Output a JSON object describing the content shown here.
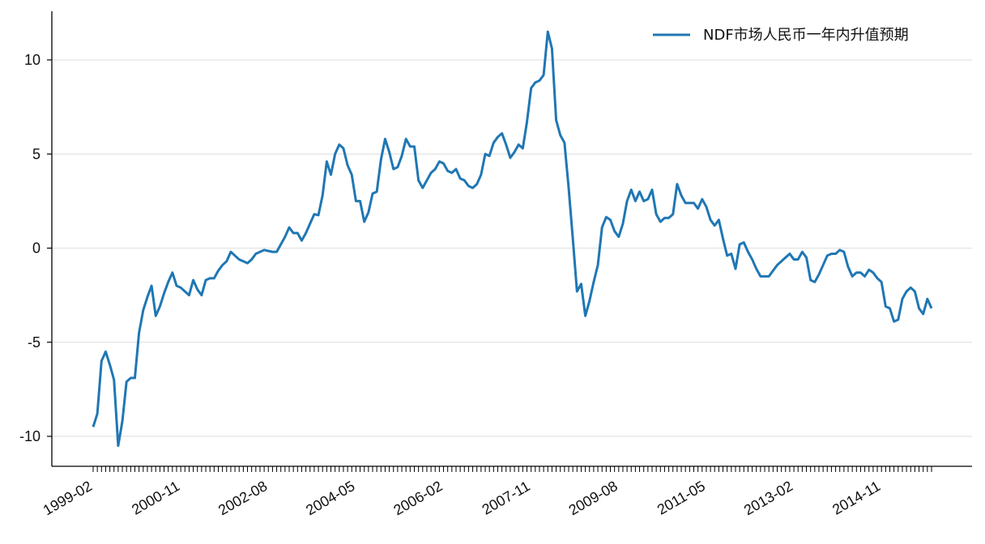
{
  "chart_data": {
    "type": "line",
    "title": "",
    "xlabel": "",
    "ylabel": "",
    "ylim": [
      -11.5,
      12.6
    ],
    "yticks": [
      10,
      5,
      0,
      -5,
      -10
    ],
    "ytick_labels": [
      "10",
      "5",
      "0",
      "-5",
      "-10"
    ],
    "grid": "horizontal",
    "legend_position": "top-right",
    "x_tick_labels": [
      "1999-02",
      "2000-11",
      "2002-08",
      "2004-05",
      "2006-02",
      "2007-11",
      "2009-08",
      "2011-05",
      "2013-02",
      "2014-11"
    ],
    "series": [
      {
        "name": "NDF市场人民币一年内升值预期",
        "color": "#1f77b4",
        "start": "1999-02",
        "frequency": "monthly",
        "values": [
          -9.5,
          -8.8,
          -6.0,
          -5.5,
          -6.2,
          -7.0,
          -10.5,
          -9.2,
          -7.1,
          -6.9,
          -6.9,
          -4.5,
          -3.3,
          -2.6,
          -2.0,
          -3.6,
          -3.1,
          -2.4,
          -1.8,
          -1.3,
          -2.0,
          -2.1,
          -2.3,
          -2.5,
          -1.7,
          -2.2,
          -2.5,
          -1.7,
          -1.6,
          -1.6,
          -1.2,
          -0.9,
          -0.7,
          -0.2,
          -0.4,
          -0.6,
          -0.7,
          -0.8,
          -0.6,
          -0.3,
          -0.2,
          -0.1,
          -0.15,
          -0.2,
          -0.2,
          0.2,
          0.6,
          1.1,
          0.8,
          0.8,
          0.4,
          0.8,
          1.3,
          1.8,
          1.75,
          2.8,
          4.6,
          3.9,
          5.0,
          5.5,
          5.3,
          4.4,
          3.9,
          2.5,
          2.5,
          1.4,
          1.9,
          2.9,
          3.0,
          4.7,
          5.8,
          5.1,
          4.2,
          4.3,
          4.9,
          5.8,
          5.4,
          5.4,
          3.6,
          3.2,
          3.6,
          4.0,
          4.2,
          4.6,
          4.5,
          4.1,
          4.0,
          4.2,
          3.7,
          3.6,
          3.3,
          3.2,
          3.4,
          3.9,
          5.0,
          4.9,
          5.6,
          5.9,
          6.1,
          5.5,
          4.8,
          5.1,
          5.5,
          5.3,
          6.7,
          8.5,
          8.8,
          8.9,
          9.2,
          11.5,
          10.6,
          6.8,
          6.0,
          5.6,
          3.2,
          0.5,
          -2.3,
          -1.9,
          -3.6,
          -2.8,
          -1.8,
          -0.9,
          1.1,
          1.65,
          1.5,
          0.9,
          0.6,
          1.3,
          2.5,
          3.1,
          2.5,
          3.0,
          2.5,
          2.6,
          3.1,
          1.8,
          1.4,
          1.6,
          1.6,
          1.8,
          3.4,
          2.8,
          2.4,
          2.4,
          2.4,
          2.1,
          2.6,
          2.2,
          1.5,
          1.2,
          1.5,
          0.5,
          -0.4,
          -0.3,
          -1.1,
          0.2,
          0.3,
          -0.2,
          -0.6,
          -1.1,
          -1.5,
          -1.5,
          -1.5,
          -1.2,
          -0.9,
          -0.7,
          -0.5,
          -0.3,
          -0.6,
          -0.6,
          -0.2,
          -0.5,
          -1.7,
          -1.8,
          -1.4,
          -0.9,
          -0.4,
          -0.3,
          -0.3,
          -0.1,
          -0.2,
          -1.0,
          -1.5,
          -1.3,
          -1.3,
          -1.5,
          -1.15,
          -1.3,
          -1.6,
          -1.8,
          -3.1,
          -3.2,
          -3.9,
          -3.8,
          -2.7,
          -2.3,
          -2.1,
          -2.3,
          -3.2,
          -3.5,
          -2.7,
          -3.2
        ]
      }
    ]
  }
}
